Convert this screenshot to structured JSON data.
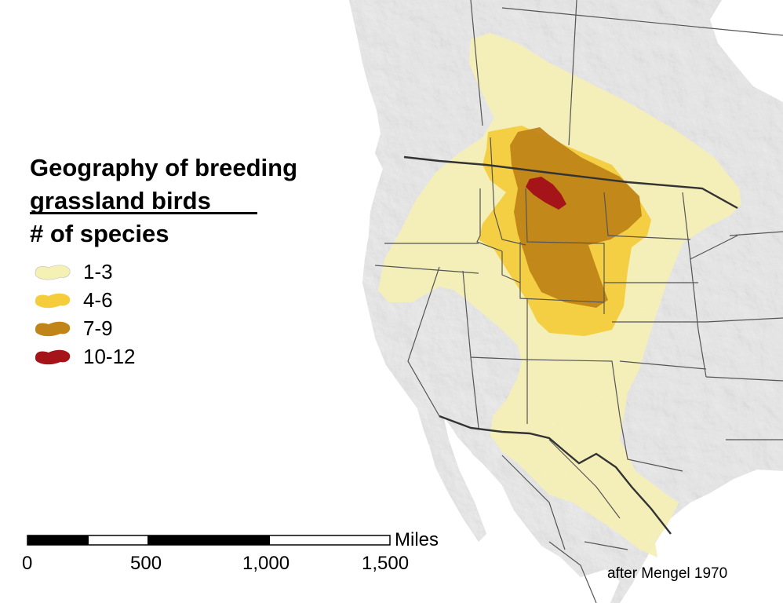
{
  "title": {
    "line1": "Geography of breeding",
    "line2": "grassland birds",
    "line3": "# of species"
  },
  "legend": [
    {
      "label": "1-3",
      "color": "#f5f0b4"
    },
    {
      "label": "4-6",
      "color": "#f4cc3c"
    },
    {
      "label": "7-9",
      "color": "#c08418"
    },
    {
      "label": "10-12",
      "color": "#a41418"
    }
  ],
  "scale_bar": {
    "unit": "Miles",
    "ticks": [
      "0",
      "500",
      "1,000",
      "1,500"
    ]
  },
  "credit": "after Mengel 1970",
  "colors": {
    "ocean": "#ffffff",
    "land": "#d2d2d2",
    "border": "#555555",
    "intl_border": "#333333"
  }
}
